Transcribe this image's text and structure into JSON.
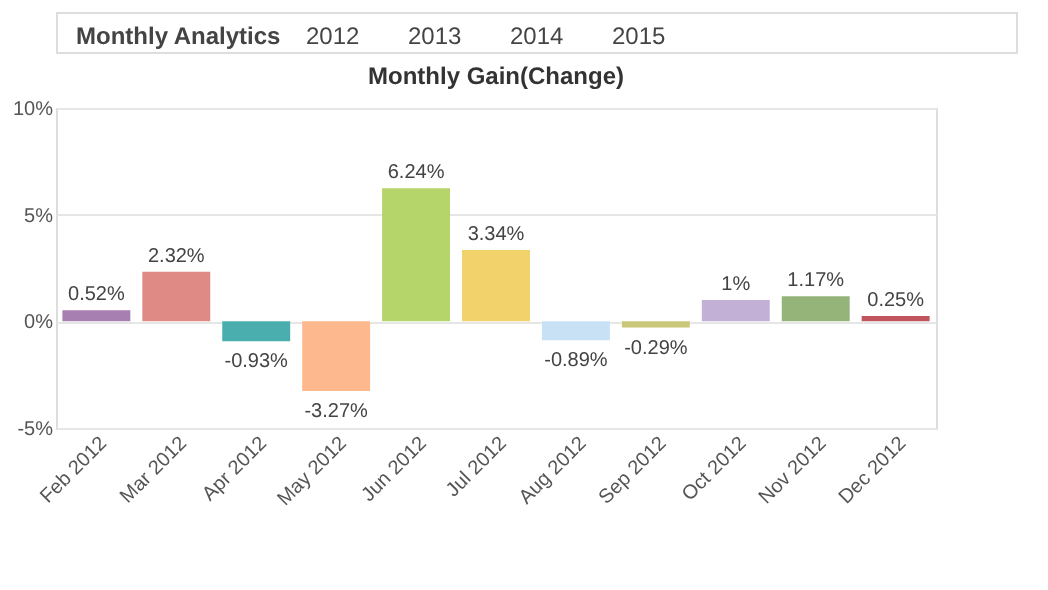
{
  "chart_data": {
    "type": "bar",
    "title": "Monthly Gain(Change)",
    "annotations": [
      "Monthly Analytics",
      "2012",
      "2013",
      "2014",
      "2015"
    ],
    "categories": [
      "Feb 2012",
      "Mar 2012",
      "Apr 2012",
      "May 2012",
      "Jun 2012",
      "Jul 2012",
      "Aug 2012",
      "Sep 2012",
      "Oct 2012",
      "Nov 2012",
      "Dec 2012"
    ],
    "values": [
      0.52,
      2.32,
      -0.93,
      -3.27,
      6.24,
      3.34,
      -0.89,
      -0.29,
      1,
      1.17,
      0.25
    ],
    "value_labels": [
      "0.52%",
      "2.32%",
      "-0.93%",
      "-3.27%",
      "6.24%",
      "3.34%",
      "-0.89%",
      "-0.29%",
      "1%",
      "1.17%",
      "0.25%"
    ],
    "colors": [
      "#a77fb0",
      "#e08a86",
      "#4aaeae",
      "#fdb88e",
      "#b5d56a",
      "#f2d36b",
      "#c8e1f5",
      "#c9c77a",
      "#c3b0d7",
      "#95b479",
      "#c0555f"
    ],
    "ylim": [
      -5,
      10
    ],
    "yticks": [
      {
        "value": -5,
        "label": "-5%"
      },
      {
        "value": 0,
        "label": "0%"
      },
      {
        "value": 5,
        "label": "5%"
      },
      {
        "value": 10,
        "label": "10%"
      }
    ],
    "grid": "y",
    "legend": false
  }
}
